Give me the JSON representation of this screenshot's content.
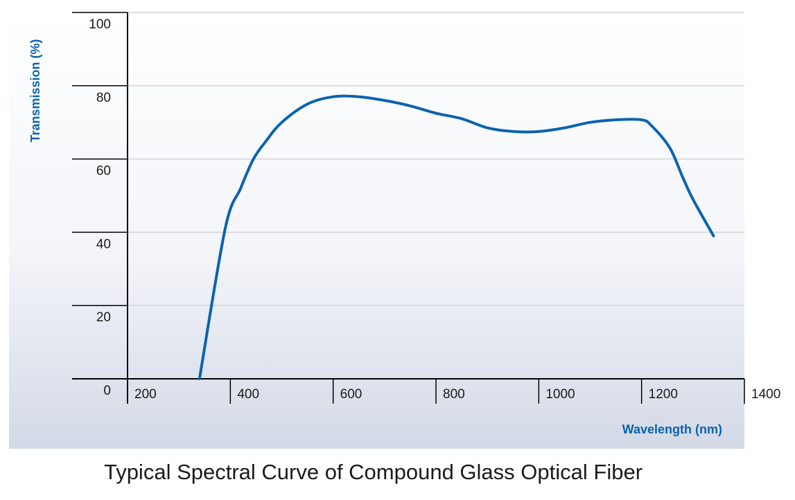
{
  "caption": "Typical Spectral Curve of Compound Glass Optical Fiber",
  "colors": {
    "curve": "#0a63b0",
    "axis_title": "#0a63b0",
    "grid": "#d4d4d4",
    "axis": "#000000",
    "background_bottom": "#d3d9e6"
  },
  "chart_data": {
    "type": "line",
    "title": "Typical Spectral Curve of Compound Glass Optical Fiber",
    "xlabel": "Wavelength (nm)",
    "ylabel": "Transmission (%)",
    "xlim": [
      200,
      1400
    ],
    "ylim": [
      0,
      100
    ],
    "x_ticks": [
      200,
      400,
      600,
      800,
      1000,
      1200,
      1400
    ],
    "y_ticks": [
      0,
      20,
      40,
      60,
      80,
      100
    ],
    "grid": true,
    "series": [
      {
        "x": [
          340,
          390,
          420,
          445,
          470,
          500,
          550,
          600,
          650,
          700,
          750,
          800,
          850,
          900,
          950,
          1000,
          1050,
          1100,
          1150,
          1200,
          1220,
          1255,
          1280,
          1300,
          1340
        ],
        "y": [
          0,
          41,
          52,
          60,
          65,
          70,
          75,
          77,
          77,
          76,
          74.5,
          72.5,
          71,
          68.5,
          67.5,
          67.5,
          68.5,
          70,
          70.7,
          70.7,
          69,
          63,
          55,
          49,
          39
        ]
      }
    ]
  }
}
